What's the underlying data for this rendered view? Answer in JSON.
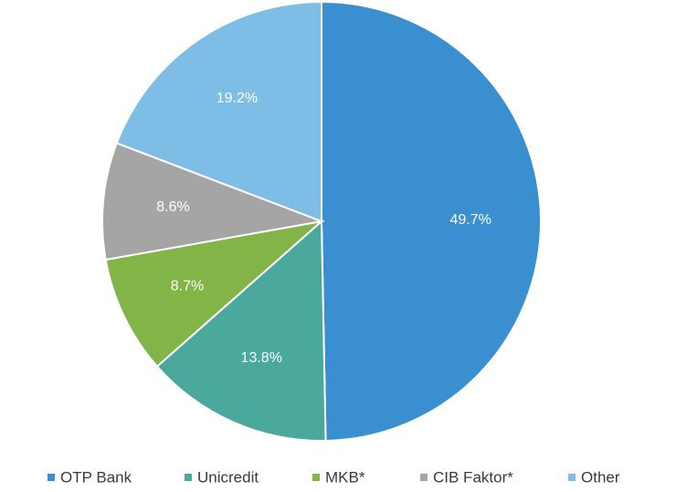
{
  "chart_data": {
    "type": "pie",
    "categories": [
      "OTP Bank",
      "Unicredit",
      "MKB*",
      "CIB Faktor*",
      "Other"
    ],
    "values": [
      49.7,
      13.8,
      8.7,
      8.6,
      19.2
    ],
    "data_labels": [
      "49.7%",
      "13.8%",
      "8.7%",
      "8.6%",
      "19.2%"
    ],
    "colors": [
      "#3a8fd0",
      "#4aa89c",
      "#82b447",
      "#a5a5a5",
      "#7dbde6"
    ],
    "start_angle": "12 o'clock",
    "direction": "clockwise",
    "legend_position": "bottom"
  }
}
